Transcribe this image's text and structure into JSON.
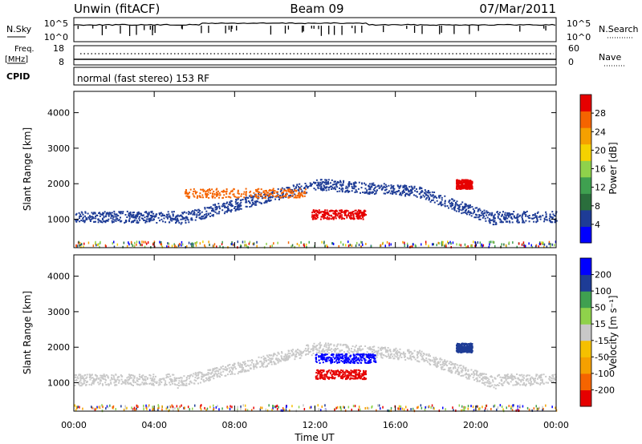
{
  "header": {
    "station": "Unwin (fitACF)",
    "beam": "Beam 09",
    "date": "07/Mar/2011"
  },
  "noise_panel": {
    "left_label": "N.Sky",
    "right_label": "N.Search",
    "left_ticks": [
      "10^5",
      "10^0"
    ],
    "right_ticks": [
      "10^5",
      "10^0"
    ]
  },
  "freq_panel": {
    "left_label_1": "Freq.",
    "left_label_2": "[MHz]",
    "right_label": "Nave",
    "left_ticks": [
      "18",
      "8"
    ],
    "right_ticks": [
      "60",
      "0"
    ]
  },
  "cpid_panel": {
    "label": "CPID",
    "text": "normal (fast stereo) 153 RF"
  },
  "chart_data": [
    {
      "type": "heatmap",
      "name": "power",
      "ylabel": "Slant Range [km]",
      "y_ticks": [
        1000,
        2000,
        3000,
        4000
      ],
      "ylim": [
        200,
        4600
      ],
      "xlim": [
        0,
        24
      ],
      "colorbar": {
        "label": "Power [dB]",
        "ticks": [
          "28",
          "24",
          "20",
          "16",
          "12",
          "8",
          "4"
        ],
        "colors": [
          "#0000ff",
          "#1e3c96",
          "#2a6e3c",
          "#3fa050",
          "#8fd24b",
          "#f5d200",
          "#f5a000",
          "#f56400",
          "#e60000"
        ]
      },
      "regions": [
        {
          "start": 0.0,
          "end": 24.0,
          "range_km": 1080,
          "band_color": "#1e3c96"
        },
        {
          "start": 5.5,
          "end": 11.5,
          "range_km": 1750,
          "band_color": "#f56400"
        },
        {
          "start": 11.8,
          "end": 14.5,
          "range_km": 1150,
          "band_color": "#e60000"
        },
        {
          "start": 19.0,
          "end": 19.8,
          "range_km": 2000,
          "band_color": "#e60000"
        }
      ]
    },
    {
      "type": "heatmap",
      "name": "velocity",
      "ylabel": "Slant Range [km]",
      "y_ticks": [
        1000,
        2000,
        3000,
        4000
      ],
      "ylim": [
        200,
        4600
      ],
      "xlim": [
        0,
        24
      ],
      "colorbar": {
        "label": "Velocity [m s⁻¹]",
        "ticks": [
          "200",
          "100",
          "50",
          "15",
          "-15",
          "-50",
          "-100",
          "-200"
        ],
        "colors": [
          "#e60000",
          "#f56400",
          "#f5a000",
          "#f5c000",
          "#c8c8c8",
          "#8fd24b",
          "#3fa050",
          "#1e3c96",
          "#0000ff"
        ]
      },
      "regions": [
        {
          "start": 0.0,
          "end": 24.0,
          "range_km": 1100,
          "band_color": "#c8c8c8"
        },
        {
          "start": 12.0,
          "end": 14.5,
          "range_km": 1250,
          "band_color": "#e60000"
        },
        {
          "start": 12.0,
          "end": 15.0,
          "range_km": 1700,
          "band_color": "#0000ff"
        },
        {
          "start": 19.0,
          "end": 19.8,
          "range_km": 2000,
          "band_color": "#1e3c96"
        }
      ],
      "x_ticks": [
        "00:00",
        "04:00",
        "08:00",
        "12:00",
        "16:00",
        "20:00",
        "00:00"
      ],
      "xlabel": "Time UT"
    }
  ]
}
